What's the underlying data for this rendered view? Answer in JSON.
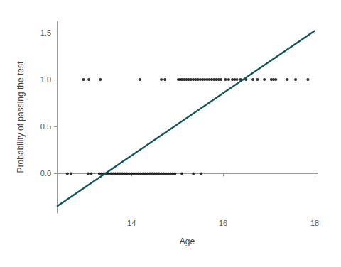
{
  "chart_data": {
    "type": "scatter",
    "x_label": "Age",
    "y_label": "Probability of passing the test",
    "xlim": [
      12.37,
      18.06
    ],
    "ylim": [
      -0.42,
      1.62
    ],
    "xticks": [
      14,
      16,
      18
    ],
    "yticks": [
      {
        "value": 0,
        "label": "0.0"
      },
      {
        "value": 0.5,
        "label": "0.5"
      },
      {
        "value": 1,
        "label": "1.0"
      },
      {
        "value": 1.5,
        "label": "1.5"
      }
    ],
    "grid": false,
    "series": [
      {
        "type": "scatter",
        "color": "#000000",
        "marker": "circle",
        "x": [
          12.6,
          12.68,
          13.05,
          13.12,
          13.3,
          13.35,
          13.4,
          13.45,
          13.5,
          13.55,
          13.6,
          13.65,
          13.7,
          13.75,
          13.8,
          13.85,
          13.9,
          13.95,
          14.0,
          14.05,
          14.1,
          14.15,
          14.2,
          14.25,
          14.3,
          14.35,
          14.4,
          14.45,
          14.5,
          14.55,
          14.6,
          14.65,
          14.7,
          14.75,
          14.8,
          14.85,
          14.9,
          14.95,
          15.1,
          15.35,
          15.52,
          12.95,
          13.07,
          13.32,
          14.18,
          14.65,
          14.73,
          15.02,
          15.06,
          15.1,
          15.15,
          15.2,
          15.25,
          15.3,
          15.35,
          15.4,
          15.45,
          15.5,
          15.55,
          15.6,
          15.65,
          15.7,
          15.75,
          15.8,
          15.85,
          15.9,
          15.95,
          16.05,
          16.12,
          16.2,
          16.25,
          16.3,
          16.38,
          16.5,
          16.65,
          16.75,
          16.9,
          17.05,
          17.1,
          17.15,
          17.4,
          17.58,
          17.85
        ],
        "values": [
          0,
          0,
          0,
          0,
          0,
          0,
          0,
          0,
          0,
          0,
          0,
          0,
          0,
          0,
          0,
          0,
          0,
          0,
          0,
          0,
          0,
          0,
          0,
          0,
          0,
          0,
          0,
          0,
          0,
          0,
          0,
          0,
          0,
          0,
          0,
          0,
          0,
          0,
          0,
          0,
          0,
          1,
          1,
          1,
          1,
          1,
          1,
          1,
          1,
          1,
          1,
          1,
          1,
          1,
          1,
          1,
          1,
          1,
          1,
          1,
          1,
          1,
          1,
          1,
          1,
          1,
          1,
          1,
          1,
          1,
          1,
          1,
          1,
          1,
          1,
          1,
          1,
          1,
          1,
          1,
          1,
          1,
          1
        ]
      },
      {
        "type": "line",
        "color": "#12545c",
        "line_style": "solid",
        "x": [
          12.37,
          18.0
        ],
        "values": [
          -0.35,
          1.52
        ]
      }
    ]
  }
}
